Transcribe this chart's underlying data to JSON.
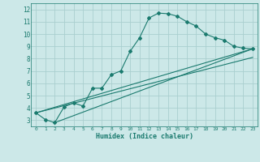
{
  "xlabel": "Humidex (Indice chaleur)",
  "background_color": "#cce8e8",
  "grid_color": "#aacfcf",
  "line_color": "#1a7a6e",
  "xlim": [
    -0.5,
    23.5
  ],
  "ylim": [
    2.5,
    12.5
  ],
  "xticks": [
    0,
    1,
    2,
    3,
    4,
    5,
    6,
    7,
    8,
    9,
    10,
    11,
    12,
    13,
    14,
    15,
    16,
    17,
    18,
    19,
    20,
    21,
    22,
    23
  ],
  "yticks": [
    3,
    4,
    5,
    6,
    7,
    8,
    9,
    10,
    11,
    12
  ],
  "curve1_x": [
    0,
    1,
    2,
    3,
    4,
    5,
    6,
    7,
    8,
    9,
    10,
    11,
    12,
    13,
    14,
    15,
    16,
    17,
    18,
    19,
    20,
    21,
    22,
    23
  ],
  "curve1_y": [
    3.6,
    3.05,
    2.8,
    4.1,
    4.4,
    4.15,
    5.6,
    5.6,
    6.7,
    7.0,
    8.6,
    9.7,
    11.3,
    11.7,
    11.65,
    11.45,
    11.0,
    10.65,
    10.0,
    9.7,
    9.5,
    9.0,
    8.85,
    8.8
  ],
  "curve2_x": [
    0,
    23
  ],
  "curve2_y": [
    3.6,
    8.8
  ],
  "curve3_x": [
    2,
    23
  ],
  "curve3_y": [
    2.8,
    8.8
  ],
  "curve4_x": [
    0,
    23
  ],
  "curve4_y": [
    3.6,
    8.1
  ]
}
